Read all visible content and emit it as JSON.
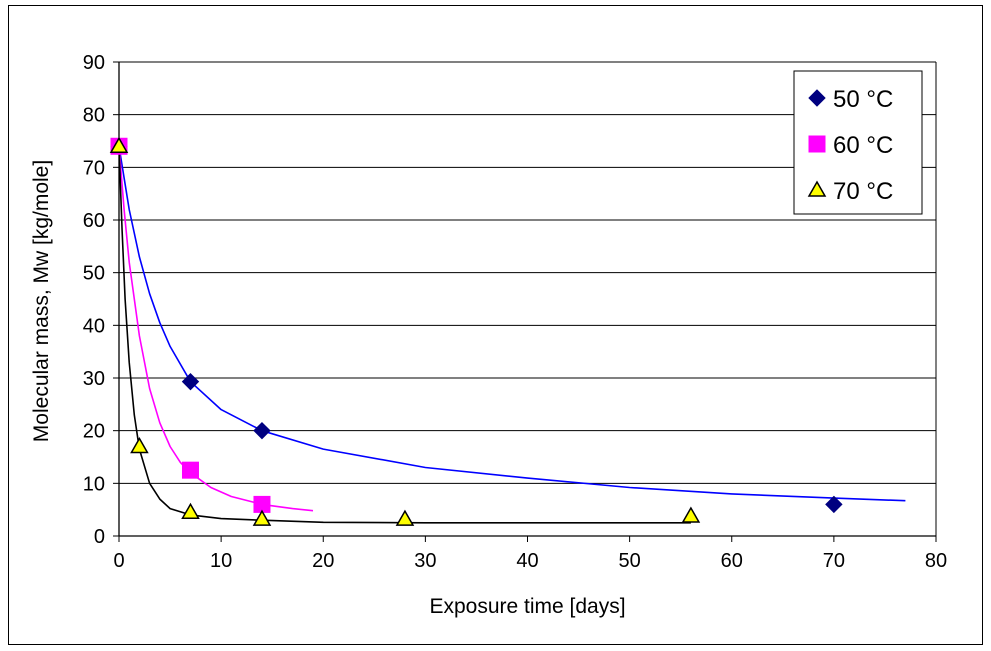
{
  "chart_data": {
    "type": "scatter",
    "title": "",
    "xlabel": "Exposure time [days]",
    "ylabel": "Molecular mass, Mw [kg/mole]",
    "xlim": [
      0,
      80
    ],
    "ylim": [
      0,
      90
    ],
    "x_ticks": [
      "0",
      "10",
      "20",
      "30",
      "40",
      "50",
      "60",
      "70",
      "80"
    ],
    "y_ticks": [
      "0",
      "10",
      "20",
      "30",
      "40",
      "50",
      "60",
      "70",
      "80",
      "90"
    ],
    "grid": "horizontal",
    "legend_position": "top-right",
    "series": [
      {
        "name": "50 °C",
        "color": "#000080",
        "marker": "diamond",
        "points": [
          [
            0,
            74
          ],
          [
            7,
            29.3
          ],
          [
            14,
            20
          ],
          [
            70,
            6
          ]
        ],
        "trend_color": "#0000ff",
        "trend": [
          [
            0,
            74
          ],
          [
            1,
            62
          ],
          [
            2,
            53
          ],
          [
            3,
            46
          ],
          [
            4,
            40.5
          ],
          [
            5,
            36
          ],
          [
            7,
            29.3
          ],
          [
            10,
            24
          ],
          [
            14,
            20
          ],
          [
            20,
            16.5
          ],
          [
            30,
            13
          ],
          [
            40,
            11
          ],
          [
            50,
            9.2
          ],
          [
            60,
            8
          ],
          [
            70,
            7.2
          ],
          [
            77,
            6.7
          ]
        ]
      },
      {
        "name": "60 °C",
        "color": "#ff00ff",
        "marker": "square",
        "points": [
          [
            0,
            74
          ],
          [
            7,
            12.5
          ],
          [
            14,
            6
          ]
        ],
        "trend_color": "#ff00ff",
        "trend": [
          [
            0,
            74
          ],
          [
            0.5,
            62
          ],
          [
            1,
            52
          ],
          [
            2,
            38
          ],
          [
            3,
            28
          ],
          [
            4,
            21.5
          ],
          [
            5,
            17
          ],
          [
            6,
            14
          ],
          [
            7,
            12
          ],
          [
            9,
            9.2
          ],
          [
            11,
            7.5
          ],
          [
            14,
            6
          ],
          [
            17,
            5.2
          ],
          [
            19,
            4.8
          ]
        ]
      },
      {
        "name": "70 °C",
        "color": "#ffff00",
        "marker": "triangle",
        "points": [
          [
            0,
            74
          ],
          [
            2,
            17
          ],
          [
            7,
            4.5
          ],
          [
            14,
            3.2
          ],
          [
            28,
            3.2
          ],
          [
            56,
            3.8
          ]
        ],
        "trend_color": "#000000",
        "trend": [
          [
            0,
            74
          ],
          [
            0.3,
            58
          ],
          [
            0.6,
            45
          ],
          [
            1,
            33
          ],
          [
            1.5,
            23
          ],
          [
            2,
            16.5
          ],
          [
            3,
            10
          ],
          [
            4,
            7
          ],
          [
            5,
            5.2
          ],
          [
            7,
            4
          ],
          [
            10,
            3.3
          ],
          [
            14,
            3
          ],
          [
            20,
            2.6
          ],
          [
            30,
            2.5
          ],
          [
            45,
            2.5
          ],
          [
            56,
            2.5
          ]
        ]
      }
    ]
  }
}
